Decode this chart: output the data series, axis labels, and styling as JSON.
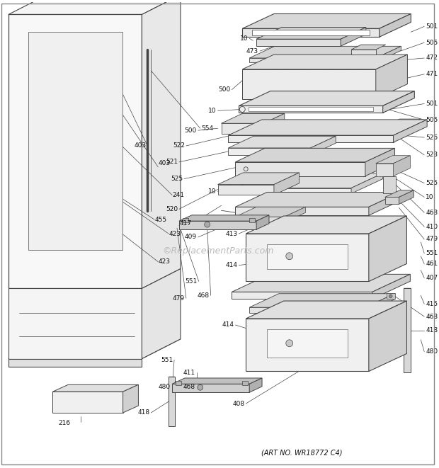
{
  "art_no": "(ART NO. WR18772 C4)",
  "background_color": "#ffffff",
  "line_color": "#444444",
  "text_color": "#111111",
  "watermark": "©ReplacementParts.com",
  "fig_width": 6.2,
  "fig_height": 6.61,
  "dpi": 100
}
